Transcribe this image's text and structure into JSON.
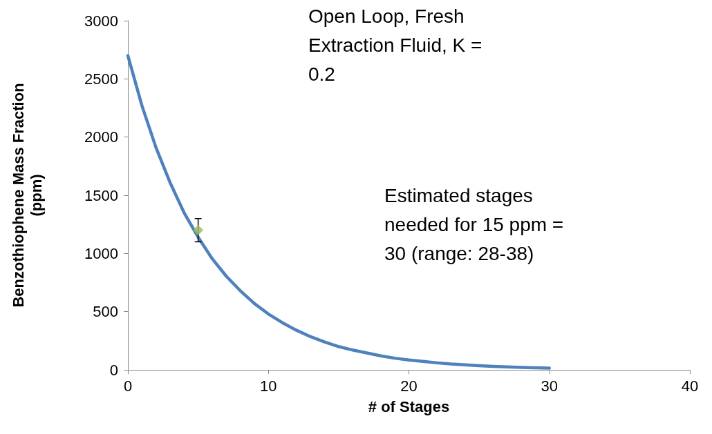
{
  "chart_data": {
    "type": "line",
    "xlabel": "# of Stages",
    "ylabel": "Benzothiophene Mass Fraction\n(ppm)",
    "annotations": [
      "Open Loop, Fresh\nExtraction Fluid, K =\n0.2",
      "Estimated stages\nneeded for 15 ppm =\n30 (range: 28-38)"
    ],
    "xlim": [
      0,
      40
    ],
    "xticks": [
      0,
      10,
      20,
      30,
      40
    ],
    "ylim": [
      0,
      3000
    ],
    "yticks": [
      0,
      500,
      1000,
      1500,
      2000,
      2500,
      3000
    ],
    "grid": false,
    "series": [
      {
        "color": "#4f81bd",
        "marker": "none",
        "line_style": "solid",
        "x": [
          0,
          1,
          2,
          3,
          4,
          5,
          6,
          7,
          8,
          9,
          10,
          11,
          12,
          13,
          14,
          15,
          16,
          17,
          18,
          19,
          20,
          21,
          22,
          23,
          24,
          25,
          26,
          27,
          28,
          29,
          30
        ],
        "values": [
          2700,
          2270,
          1910,
          1610,
          1350,
          1140,
          955,
          805,
          680,
          570,
          480,
          405,
          340,
          285,
          240,
          200,
          170,
          145,
          120,
          100,
          85,
          72,
          60,
          50,
          43,
          36,
          30,
          25,
          21,
          18,
          15
        ]
      },
      {
        "type": "scatter",
        "color": "#9bbb59",
        "marker": "diamond",
        "x": [
          5
        ],
        "values": [
          1200
        ],
        "errors": [
          100
        ]
      }
    ]
  }
}
